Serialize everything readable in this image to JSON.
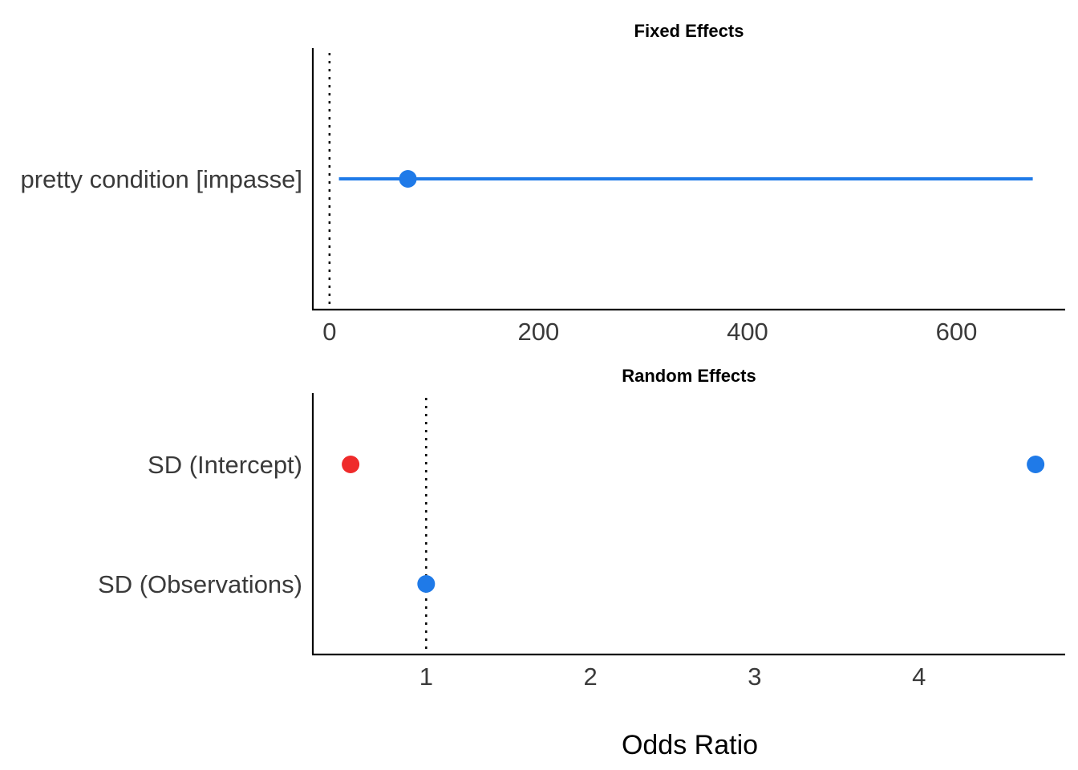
{
  "chart_data": [
    {
      "type": "forest",
      "title": "Fixed Effects",
      "xlabel": "",
      "xlim": [
        -16,
        704
      ],
      "xticks": [
        0,
        200,
        400,
        600
      ],
      "reference_line": 0,
      "categories": [
        "pretty condition [impasse]"
      ],
      "points": [
        {
          "category": "pretty condition [impasse]",
          "estimate": 75,
          "ci_low": 9,
          "ci_high": 673,
          "color": "#1f7ae8"
        }
      ]
    },
    {
      "type": "forest",
      "title": "Random Effects",
      "xlabel": "",
      "xlim": [
        0.31,
        4.89
      ],
      "xticks": [
        1,
        2,
        3,
        4
      ],
      "reference_line": 1,
      "categories": [
        "SD (Intercept)",
        "SD (Observations)"
      ],
      "points": [
        {
          "category": "SD (Intercept)",
          "estimate": 0.54,
          "color": "#ef2b2b"
        },
        {
          "category": "SD (Intercept)",
          "estimate": 4.71,
          "color": "#1f7ae8"
        },
        {
          "category": "SD (Observations)",
          "estimate": 1.0,
          "color": "#1f7ae8"
        }
      ]
    }
  ],
  "shared_xlabel": "Odds Ratio",
  "grid": false
}
